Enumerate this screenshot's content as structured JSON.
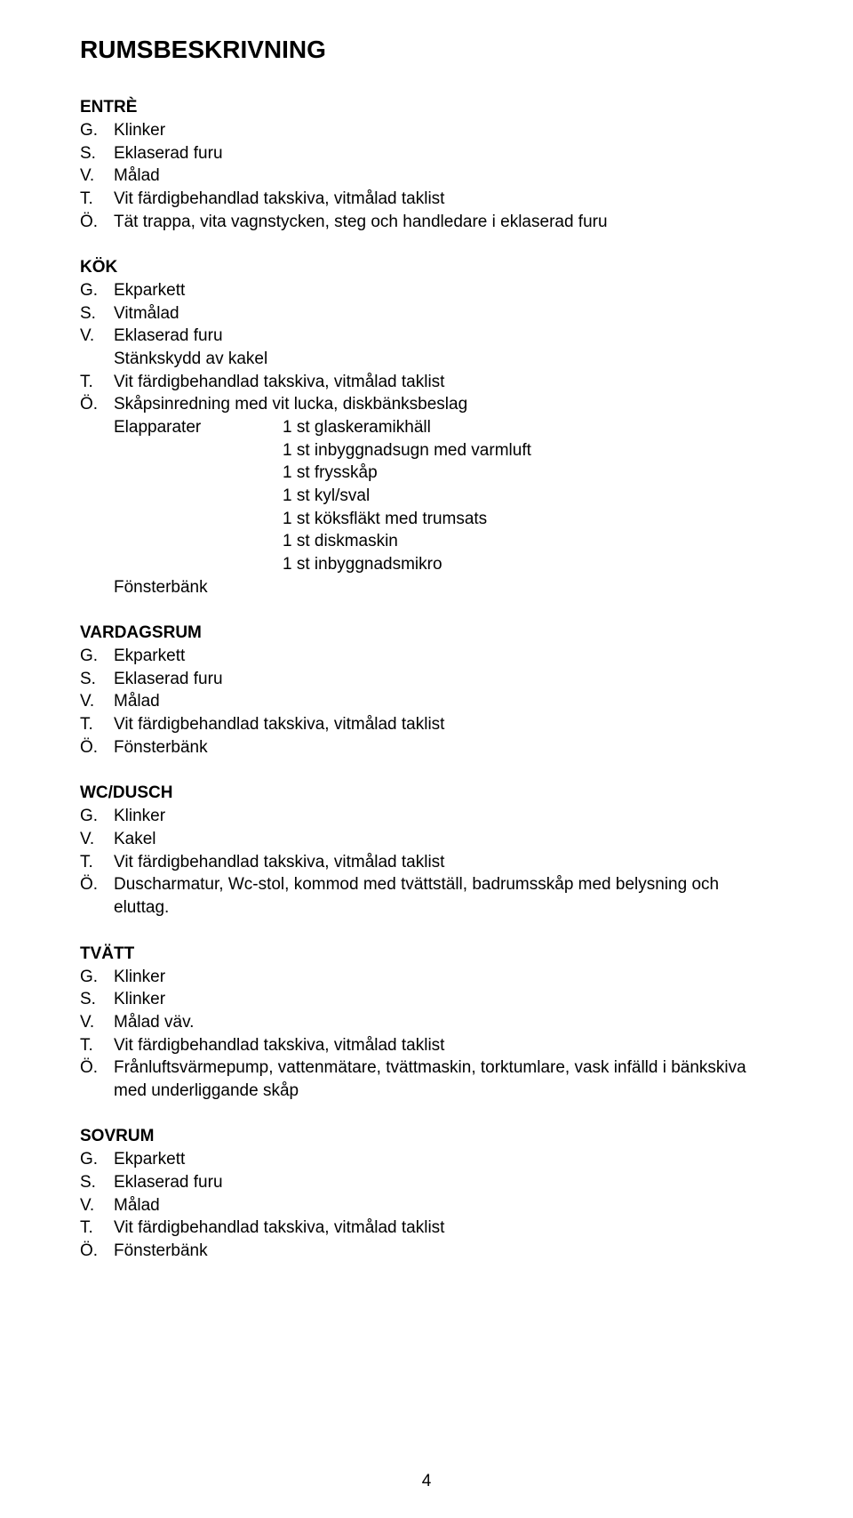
{
  "title": "RUMSBESKRIVNING",
  "page_number": "4",
  "sections": {
    "entre": {
      "heading": "ENTRÈ",
      "g": "Klinker",
      "s": "Eklaserad furu",
      "v": "Målad",
      "t": "Vit färdigbehandlad takskiva, vitmålad taklist",
      "o": "Tät trappa, vita vagnstycken, steg och handledare i eklaserad furu"
    },
    "kok": {
      "heading": "KÖK",
      "g": "Ekparkett",
      "s": "Vitmålad",
      "v": "Eklaserad furu",
      "v2": "Stänkskydd av kakel",
      "t": "Vit färdigbehandlad takskiva, vitmålad taklist",
      "o": "Skåpsinredning med vit lucka, diskbänksbeslag",
      "elapp_label": "Elapparater",
      "elapp": [
        "1 st glaskeramikhäll",
        "1 st inbyggnadsugn med varmluft",
        "1 st frysskåp",
        "1 st kyl/sval",
        "1 st köksfläkt med trumsats",
        "1 st diskmaskin",
        "1 st inbyggnadsmikro"
      ],
      "fonsterbank": "Fönsterbänk"
    },
    "vardagsrum": {
      "heading": "VARDAGSRUM",
      "g": "Ekparkett",
      "s": "Eklaserad furu",
      "v": "Målad",
      "t": "Vit färdigbehandlad takskiva, vitmålad taklist",
      "o": "Fönsterbänk"
    },
    "wcdusch": {
      "heading": "WC/DUSCH",
      "g": "Klinker",
      "v": "Kakel",
      "t": "Vit färdigbehandlad takskiva, vitmålad taklist",
      "o": "Duscharmatur, Wc-stol, kommod med tvättställ, badrumsskåp med belysning och eluttag."
    },
    "tvatt": {
      "heading": "TVÄTT",
      "g": "Klinker",
      "s": "Klinker",
      "v": "Målad väv.",
      "t": "Vit färdigbehandlad takskiva, vitmålad taklist",
      "o": "Frånluftsvärmepump, vattenmätare, tvättmaskin, torktumlare, vask infälld i bänkskiva med underliggande skåp"
    },
    "sovrum": {
      "heading": "SOVRUM",
      "g": "Ekparkett",
      "s": "Eklaserad furu",
      "v": "Målad",
      "t": "Vit färdigbehandlad takskiva, vitmålad taklist",
      "o": "Fönsterbänk"
    }
  },
  "keys": {
    "g": "G.",
    "s": "S.",
    "v": "V.",
    "t": "T.",
    "o": "Ö."
  }
}
